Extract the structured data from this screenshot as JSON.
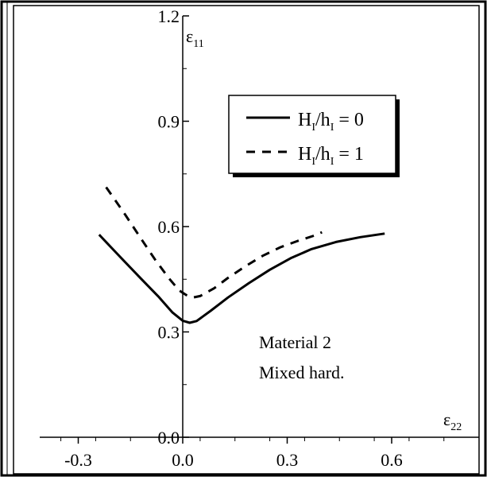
{
  "chart_data": {
    "type": "line",
    "xlabel": "ε",
    "xlabel_sub": "22",
    "ylabel": "ε",
    "ylabel_sub": "11",
    "xlim": [
      -0.4,
      0.8
    ],
    "ylim": [
      0.0,
      1.2
    ],
    "x_ticks": [
      -0.3,
      0.0,
      0.3,
      0.6
    ],
    "x_tick_labels": [
      "-0.3",
      "0.0",
      "0.3",
      "0.6"
    ],
    "y_ticks": [
      0.0,
      0.3,
      0.6,
      0.9,
      1.2
    ],
    "y_tick_labels": [
      "0.0",
      "0.3",
      "0.6",
      "0.9",
      "1.2"
    ],
    "grid": false,
    "legend_position": "top-right",
    "series": [
      {
        "name": "H_I/h_I = 0",
        "legend_main": "H",
        "legend_sub1": "I",
        "legend_mid": "/h",
        "legend_sub2": "I",
        "legend_tail": " = 0",
        "style": "solid",
        "points": [
          [
            -0.24,
            0.577
          ],
          [
            -0.18,
            0.514
          ],
          [
            -0.12,
            0.452
          ],
          [
            -0.07,
            0.401
          ],
          [
            -0.03,
            0.356
          ],
          [
            0.0,
            0.332
          ],
          [
            0.02,
            0.326
          ],
          [
            0.04,
            0.331
          ],
          [
            0.08,
            0.36
          ],
          [
            0.13,
            0.398
          ],
          [
            0.19,
            0.439
          ],
          [
            0.25,
            0.477
          ],
          [
            0.31,
            0.51
          ],
          [
            0.37,
            0.536
          ],
          [
            0.44,
            0.556
          ],
          [
            0.51,
            0.57
          ],
          [
            0.58,
            0.58
          ]
        ]
      },
      {
        "name": "H_I/h_I = 1",
        "legend_main": "H",
        "legend_sub1": "I",
        "legend_mid": "/h",
        "legend_sub2": "I",
        "legend_tail": " = 1",
        "style": "dashed",
        "points": [
          [
            -0.22,
            0.712
          ],
          [
            -0.17,
            0.641
          ],
          [
            -0.12,
            0.566
          ],
          [
            -0.08,
            0.507
          ],
          [
            -0.04,
            0.453
          ],
          [
            -0.01,
            0.418
          ],
          [
            0.01,
            0.405
          ],
          [
            0.03,
            0.398
          ],
          [
            0.05,
            0.402
          ],
          [
            0.09,
            0.424
          ],
          [
            0.13,
            0.454
          ],
          [
            0.18,
            0.487
          ],
          [
            0.23,
            0.517
          ],
          [
            0.28,
            0.541
          ],
          [
            0.33,
            0.559
          ],
          [
            0.38,
            0.575
          ],
          [
            0.4,
            0.584
          ]
        ]
      }
    ],
    "annotation_lines": [
      "Material 2",
      "Mixed hard."
    ]
  }
}
